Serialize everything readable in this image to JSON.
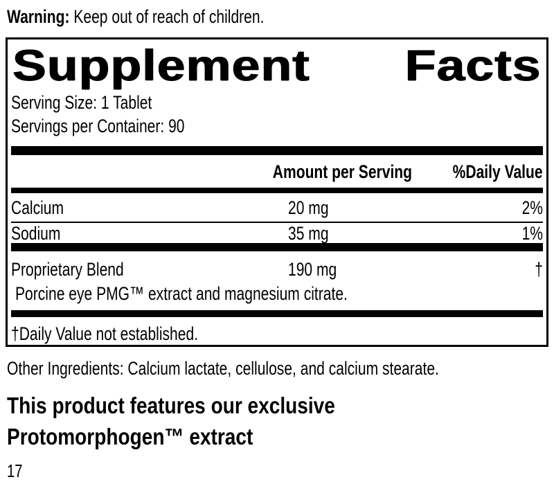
{
  "colors": {
    "text": "#000000",
    "background": "#ffffff"
  },
  "warning": {
    "label": "Warning:",
    "text": " Keep out of reach of children."
  },
  "supplement_facts": {
    "title_word1": "Supplement",
    "title_word2": "Facts",
    "serving_size": "Serving Size: 1 Tablet",
    "servings_per_container": "Servings per Container: 90",
    "columns": {
      "amount": "Amount per Serving",
      "daily_value": "%Daily Value"
    },
    "rows": [
      {
        "name": "Calcium",
        "amount": "20 mg",
        "dv": "2%"
      },
      {
        "name": "Sodium",
        "amount": "35 mg",
        "dv": "1%"
      },
      {
        "name": "Proprietary Blend",
        "amount": "190 mg",
        "dv": "†",
        "description": "Porcine eye PMG™ extract and magnesium citrate."
      }
    ],
    "footnote": "†Daily Value not established."
  },
  "other_ingredients": "Other Ingredients: Calcium lactate, cellulose, and calcium stearate.",
  "feature_heading": {
    "line1": "This product features our exclusive",
    "line2": "Protomorphogen™ extract"
  },
  "page_number": "17"
}
